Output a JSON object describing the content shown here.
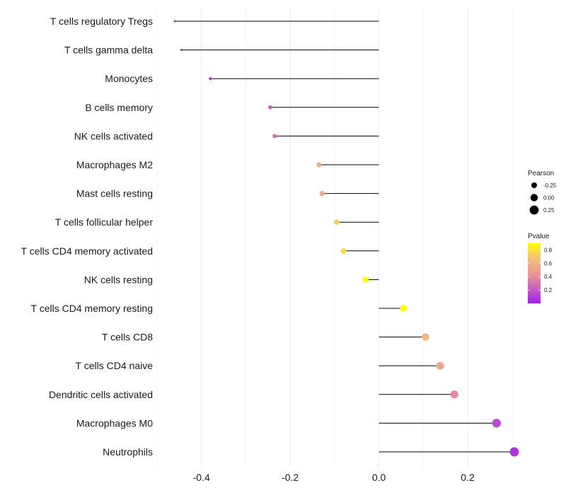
{
  "chart_data": {
    "type": "lollipop",
    "title": "",
    "xlabel": "",
    "ylabel": "",
    "xlim": [
      -0.5,
      0.31
    ],
    "x_ticks": [
      -0.4,
      -0.2,
      0.0,
      0.2
    ],
    "x_tick_labels": [
      "-0.4",
      "-0.2",
      "0.0",
      "0.2"
    ],
    "grid": true,
    "categories": [
      "T cells regulatory  Tregs",
      "T cells gamma delta",
      "Monocytes",
      "B cells memory",
      "NK cells activated",
      "Macrophages M2",
      "Mast cells resting",
      "T cells follicular helper",
      "T cells CD4 memory activated",
      "NK cells resting",
      "T cells CD4 memory resting",
      "T cells CD8",
      "T cells CD4 naive",
      "Dendritic cells activated",
      "Macrophages M0",
      "Neutrophils"
    ],
    "pearson": [
      -0.46,
      -0.445,
      -0.38,
      -0.245,
      -0.235,
      -0.135,
      -0.128,
      -0.095,
      -0.08,
      -0.03,
      0.055,
      0.105,
      0.138,
      0.17,
      0.265,
      0.305
    ],
    "pvalue": [
      0.03,
      0.05,
      0.08,
      0.25,
      0.27,
      0.55,
      0.55,
      0.7,
      0.75,
      0.95,
      0.9,
      0.6,
      0.52,
      0.38,
      0.15,
      0.08
    ],
    "legend": {
      "size_title": "Pearson",
      "size_labels": [
        "-0.25",
        "0.00",
        "0.25"
      ],
      "size_values": [
        -0.25,
        0.0,
        0.25
      ],
      "color_title": "Pvalue",
      "color_labels": [
        "0.8",
        "0.6",
        "0.4",
        "0.2"
      ],
      "color_values": [
        0.8,
        0.6,
        0.4,
        0.2
      ],
      "color_range": [
        0.0,
        0.9
      ],
      "placement": "right"
    },
    "colors": {
      "low": "#A020F0",
      "mid": "#E8A0A0",
      "high": "#FFFF00",
      "segment": "#000000",
      "grid": "#EBEBEB"
    }
  }
}
